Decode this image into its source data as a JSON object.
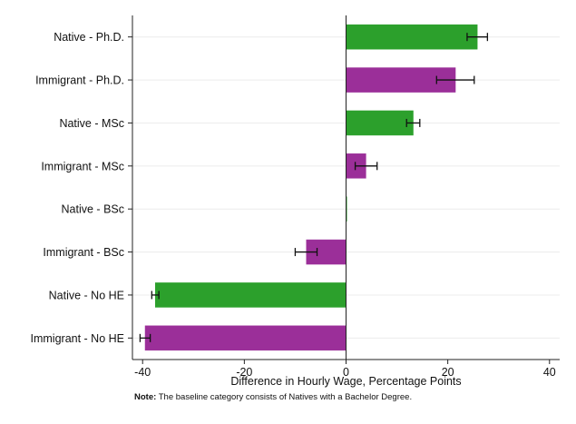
{
  "chart_data": {
    "type": "bar",
    "orientation": "horizontal",
    "categories": [
      "Native - Ph.D.",
      "Immigrant - Ph.D.",
      "Native - MSc",
      "Immigrant - MSc",
      "Native - BSc",
      "Immigrant - BSc",
      "Native - No HE",
      "Immigrant - No HE"
    ],
    "values": [
      25.8,
      21.5,
      13.2,
      3.9,
      0,
      -7.8,
      -37.5,
      -39.5
    ],
    "error_low": [
      23.8,
      17.8,
      11.9,
      1.8,
      0,
      -10.0,
      -38.2,
      -40.5
    ],
    "error_high": [
      27.8,
      25.2,
      14.5,
      6.1,
      0,
      -5.7,
      -36.8,
      -38.5
    ],
    "groups": [
      "Native",
      "Immigrant",
      "Native",
      "Immigrant",
      "Native",
      "Immigrant",
      "Native",
      "Immigrant"
    ],
    "colors": {
      "Native": "#2ca02c",
      "Immigrant": "#9b2f99"
    },
    "xlabel": "Difference in Hourly Wage, Percentage Points",
    "xlim": [
      -42,
      42
    ],
    "xticks": [
      -40,
      -20,
      0,
      20,
      40
    ],
    "xtick_labels": [
      "-40",
      "-20",
      "0",
      "20",
      "40"
    ],
    "grid": true
  },
  "note": {
    "label": "Note:",
    "text": " The baseline category consists of Natives with a Bachelor Degree."
  }
}
